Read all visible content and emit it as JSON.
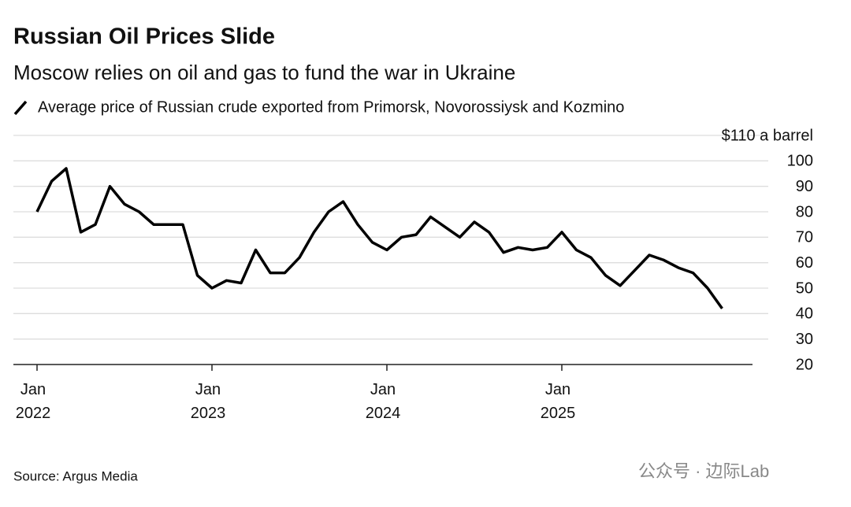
{
  "chart_data": {
    "type": "line",
    "title": "Russian Oil Prices Slide",
    "subtitle": "Moscow relies on oil and gas to fund the war in Ukraine",
    "source": "Source: Argus Media",
    "watermark": "公众号 · 边际Lab",
    "x": [
      "2022-01",
      "2022-02",
      "2022-03",
      "2022-04",
      "2022-05",
      "2022-06",
      "2022-07",
      "2022-08",
      "2022-09",
      "2022-10",
      "2022-11",
      "2022-12",
      "2023-01",
      "2023-02",
      "2023-03",
      "2023-04",
      "2023-05",
      "2023-06",
      "2023-07",
      "2023-08",
      "2023-09",
      "2023-10",
      "2023-11",
      "2023-12",
      "2024-01",
      "2024-02",
      "2024-03",
      "2024-04",
      "2024-05",
      "2024-06",
      "2024-07",
      "2024-08",
      "2024-09",
      "2024-10",
      "2024-11",
      "2024-12",
      "2025-01",
      "2025-02",
      "2025-03",
      "2025-04",
      "2025-05",
      "2025-06",
      "2025-07",
      "2025-08",
      "2025-09",
      "2025-10",
      "2025-11",
      "2025-12"
    ],
    "series": [
      {
        "name": "Average price of Russian crude exported from Primorsk, Novorossiysk and Kozmino",
        "color": "#000000",
        "values": [
          80,
          92,
          97,
          72,
          75,
          90,
          83,
          80,
          75,
          75,
          75,
          55,
          50,
          53,
          52,
          65,
          56,
          56,
          62,
          72,
          80,
          84,
          75,
          68,
          65,
          70,
          71,
          78,
          74,
          70,
          76,
          72,
          64,
          66,
          65,
          66,
          72,
          65,
          62,
          55,
          51,
          57,
          63,
          61,
          58,
          56,
          50,
          42
        ]
      }
    ],
    "xlim": [
      "2021-11",
      "2026-02"
    ],
    "xticks": [
      {
        "value": "2022-01",
        "label": "Jan 2022"
      },
      {
        "value": "2023-01",
        "label": "Jan 2023"
      },
      {
        "value": "2024-01",
        "label": "Jan 2024"
      },
      {
        "value": "2025-01",
        "label": "Jan 2025"
      }
    ],
    "ylim": [
      20,
      110
    ],
    "yticks": [
      20,
      30,
      40,
      50,
      60,
      70,
      80,
      90,
      100,
      {
        "value": 110,
        "label": "$110 a barrel"
      }
    ],
    "grid": true
  }
}
